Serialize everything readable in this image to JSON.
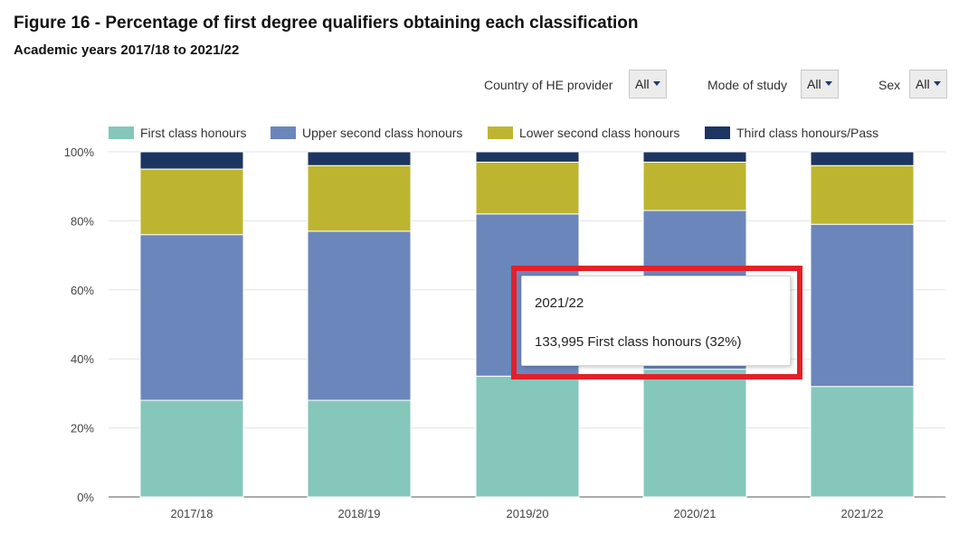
{
  "title": "Figure 16 - Percentage of first degree qualifiers obtaining each classification",
  "subtitle": "Academic years 2017/18 to 2021/22",
  "filters": [
    {
      "label": "Country of HE provider",
      "value": "All"
    },
    {
      "label": "Mode of study",
      "value": "All"
    },
    {
      "label": "Sex",
      "value": "All"
    }
  ],
  "colors": {
    "first": "#85c7bb",
    "upper": "#6b86bb",
    "lower": "#bdb530",
    "third": "#1d3561",
    "highlight": "#e3202a"
  },
  "tooltip": {
    "line1": "2021/22",
    "line2": "133,995 First class honours (32%)"
  },
  "chart_data": {
    "type": "bar",
    "stacked": true,
    "categories": [
      "2017/18",
      "2018/19",
      "2019/20",
      "2020/21",
      "2021/22"
    ],
    "series": [
      {
        "name": "First class honours",
        "values": [
          28,
          28,
          35,
          37,
          32
        ]
      },
      {
        "name": "Upper second class honours",
        "values": [
          48,
          49,
          47,
          46,
          47
        ]
      },
      {
        "name": "Lower second class honours",
        "values": [
          19,
          19,
          15,
          14,
          17
        ]
      },
      {
        "name": "Third class honours/Pass",
        "values": [
          5,
          4,
          3,
          3,
          4
        ]
      }
    ],
    "ylim": [
      0,
      100
    ],
    "yticks": [
      "0%",
      "20%",
      "40%",
      "60%",
      "80%",
      "100%"
    ],
    "grid": true,
    "legend_position": "top"
  }
}
